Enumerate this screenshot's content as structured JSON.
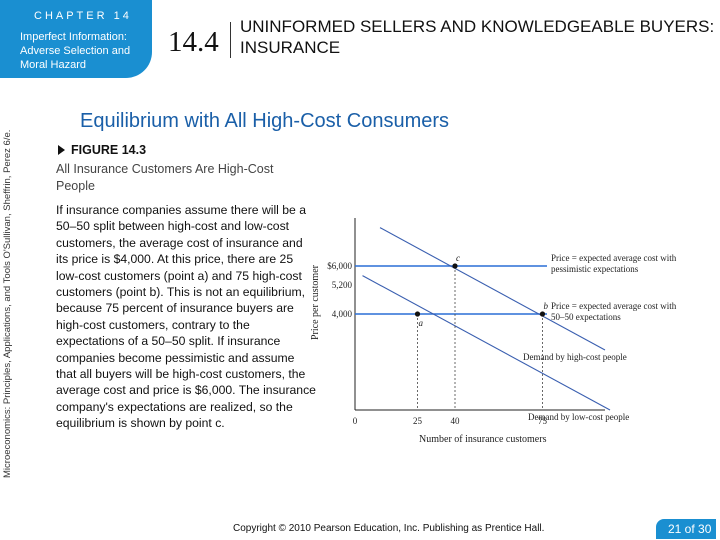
{
  "header": {
    "chapter_label": "CHAPTER 14",
    "chapter_subtitle": "Imperfect Information: Adverse Selection and Moral Hazard",
    "section_number": "14.4",
    "section_title": "UNINFORMED SELLERS AND KNOWLEDGEABLE BUYERS: INSURANCE"
  },
  "sidebar": {
    "text": "Microeconomics: Principles, Applications, and Tools    O'Sullivan, Sheffrin, Perez    6/e."
  },
  "slide": {
    "title": "Equilibrium with All High-Cost Consumers",
    "figure_label": "FIGURE 14.3",
    "figure_subtitle": "All Insurance Customers Are High-Cost People",
    "body": "If insurance companies assume there will be a 50–50 split between high-cost and low-cost customers, the average cost of insurance and its price is $4,000. At this price, there are 25 low-cost customers (point a) and 75 high-cost customers (point b). This is not an equilibrium, because 75 percent of insurance buyers are high-cost customers, contrary to the expectations of a 50–50 split. If insurance companies become pessimistic and assume that all buyers will be high-cost customers, the average cost and price is $6,000. The insurance company's expectations are realized, so the equilibrium is shown by point c."
  },
  "chart_data": {
    "type": "line",
    "title": "",
    "xlabel": "Number of insurance customers",
    "ylabel": "Price per customer",
    "x_ticks": [
      "0",
      "25",
      "40",
      "75"
    ],
    "y_ticks": [
      "$6,000",
      "5,200",
      "4,000"
    ],
    "xlim": [
      0,
      100
    ],
    "ylim": [
      0,
      8000
    ],
    "series": [
      {
        "name": "Demand by high-cost people",
        "x": [
          10,
          100
        ],
        "y": [
          7600,
          2500
        ]
      },
      {
        "name": "Demand by low-cost people",
        "x": [
          3,
          102
        ],
        "y": [
          5600,
          0
        ]
      }
    ],
    "price_lines": [
      {
        "label": "Price = expected average cost with pessimistic expectations",
        "y": 6000
      },
      {
        "label": "Price = expected average cost with 50–50 expectations",
        "y": 4000
      }
    ],
    "points": [
      {
        "label": "a",
        "x": 25,
        "y": 4000
      },
      {
        "label": "b",
        "x": 75,
        "y": 4000
      },
      {
        "label": "c",
        "x": 40,
        "y": 6000
      }
    ],
    "colors": {
      "axes": "#222222",
      "price_lines": "#2a6fd6",
      "demand": "#3a5fb0"
    }
  },
  "footer": {
    "copyright": "Copyright © 2010 Pearson Education, Inc. Publishing as Prentice Hall.",
    "page": "21 of 30"
  }
}
